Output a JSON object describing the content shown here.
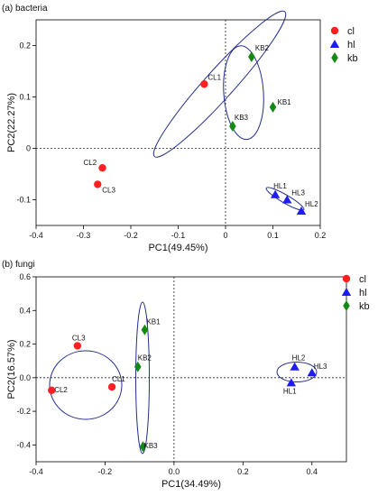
{
  "figure": {
    "legend": [
      {
        "key": "cl",
        "label": "cl",
        "color": "#ff2020",
        "marker": "circle"
      },
      {
        "key": "hl",
        "label": "hl",
        "color": "#1d1df0",
        "marker": "triangle"
      },
      {
        "key": "kb",
        "label": "kb",
        "color": "#138a13",
        "marker": "diamond"
      }
    ],
    "ellipse_color": "#232e8c"
  },
  "chart_data": [
    {
      "type": "scatter",
      "title": "(a) bacteria",
      "xlabel": "PC1(49.45%)",
      "ylabel": "PC2(22.27%)",
      "xlim": [
        -0.4,
        0.2
      ],
      "ylim": [
        -0.15,
        0.25
      ],
      "xticks": [
        -0.4,
        -0.3,
        -0.2,
        -0.1,
        0,
        0.1,
        0.2
      ],
      "xtick_labels": [
        "-0.4",
        "-0.3",
        "-0.2",
        "-0.1",
        "0",
        "0.1",
        "0.2"
      ],
      "yticks": [
        -0.1,
        0,
        0.1,
        0.2
      ],
      "ytick_labels": [
        "-0.1",
        "0",
        "0.1",
        "0.2"
      ],
      "legend_position": "right",
      "series": [
        {
          "name": "cl",
          "points": [
            {
              "label": "CL1",
              "x": -0.045,
              "y": 0.125
            },
            {
              "label": "CL2",
              "x": -0.26,
              "y": -0.038
            },
            {
              "label": "CL3",
              "x": -0.27,
              "y": -0.07
            }
          ]
        },
        {
          "name": "hl",
          "points": [
            {
              "label": "HL1",
              "x": 0.105,
              "y": -0.09
            },
            {
              "label": "HL3",
              "x": 0.13,
              "y": -0.1
            },
            {
              "label": "HL2",
              "x": 0.16,
              "y": -0.122
            }
          ]
        },
        {
          "name": "kb",
          "points": [
            {
              "label": "KB2",
              "x": 0.055,
              "y": 0.178
            },
            {
              "label": "KB1",
              "x": 0.1,
              "y": 0.08
            },
            {
              "label": "KB3",
              "x": 0.015,
              "y": 0.043
            }
          ]
        }
      ]
    },
    {
      "type": "scatter",
      "title": "(b) fungi",
      "xlabel": "PC1(34.49%)",
      "ylabel": "PC2(16.57%)",
      "xlim": [
        -0.4,
        0.5
      ],
      "ylim": [
        -0.5,
        0.6
      ],
      "xticks": [
        -0.4,
        -0.2,
        0,
        0.2,
        0.4
      ],
      "xtick_labels": [
        "-0.4",
        "-0.2",
        "0.0",
        "0.2",
        "0.4"
      ],
      "yticks": [
        -0.4,
        -0.2,
        0,
        0.2,
        0.4,
        0.6
      ],
      "ytick_labels": [
        "-0.4",
        "-0.2",
        "0.0",
        "0.2",
        "0.4",
        "0.6"
      ],
      "legend_position": "right",
      "series": [
        {
          "name": "cl",
          "points": [
            {
              "label": "CL1",
              "x": -0.18,
              "y": -0.055
            },
            {
              "label": "CL2",
              "x": -0.355,
              "y": -0.075
            },
            {
              "label": "CL3",
              "x": -0.28,
              "y": 0.19
            }
          ]
        },
        {
          "name": "hl",
          "points": [
            {
              "label": "HL1",
              "x": 0.34,
              "y": -0.03
            },
            {
              "label": "HL2",
              "x": 0.35,
              "y": 0.065
            },
            {
              "label": "HL3",
              "x": 0.4,
              "y": 0.03
            }
          ]
        },
        {
          "name": "kb",
          "points": [
            {
              "label": "KB1",
              "x": -0.085,
              "y": 0.285
            },
            {
              "label": "KB2",
              "x": -0.105,
              "y": 0.065
            },
            {
              "label": "KB3",
              "x": -0.09,
              "y": -0.41
            }
          ]
        }
      ]
    }
  ]
}
